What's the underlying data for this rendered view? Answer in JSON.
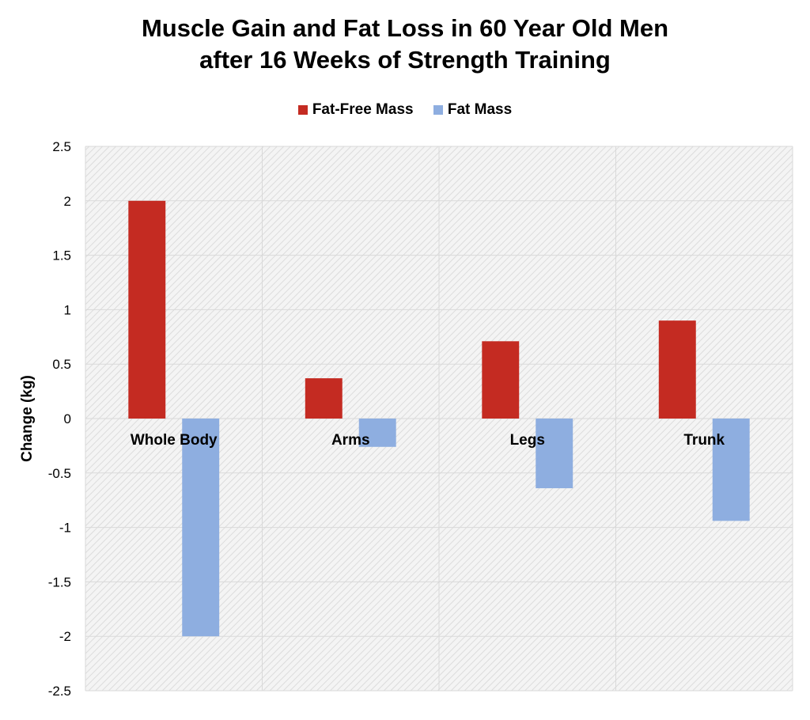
{
  "chart_data": {
    "type": "bar",
    "title_lines": [
      "Muscle Gain and Fat Loss in 60 Year Old Men",
      "after 16 Weeks of Strength Training"
    ],
    "xlabel": "",
    "ylabel": "Change (kg)",
    "categories": [
      "Whole Body",
      "Arms",
      "Legs",
      "Trunk"
    ],
    "series": [
      {
        "name": "Fat-Free Mass",
        "color": "#c42b22",
        "values": [
          2.0,
          0.37,
          0.71,
          0.9
        ]
      },
      {
        "name": "Fat Mass",
        "color": "#8eaee0",
        "values": [
          -2.0,
          -0.26,
          -0.64,
          -0.94
        ]
      }
    ],
    "ylim": [
      -2.5,
      2.5
    ],
    "yticks": [
      2.5,
      2,
      1.5,
      1,
      0.5,
      0,
      -0.5,
      -1,
      -1.5,
      -2,
      -2.5
    ],
    "ytick_labels": [
      "2.5",
      "2",
      "1.5",
      "1",
      "0.5",
      "0",
      "-0.5",
      "-1",
      "-1.5",
      "-2",
      "-2.5"
    ],
    "grid": true,
    "legend_position": "top-center",
    "plot_background": "hatched-light-gray"
  }
}
